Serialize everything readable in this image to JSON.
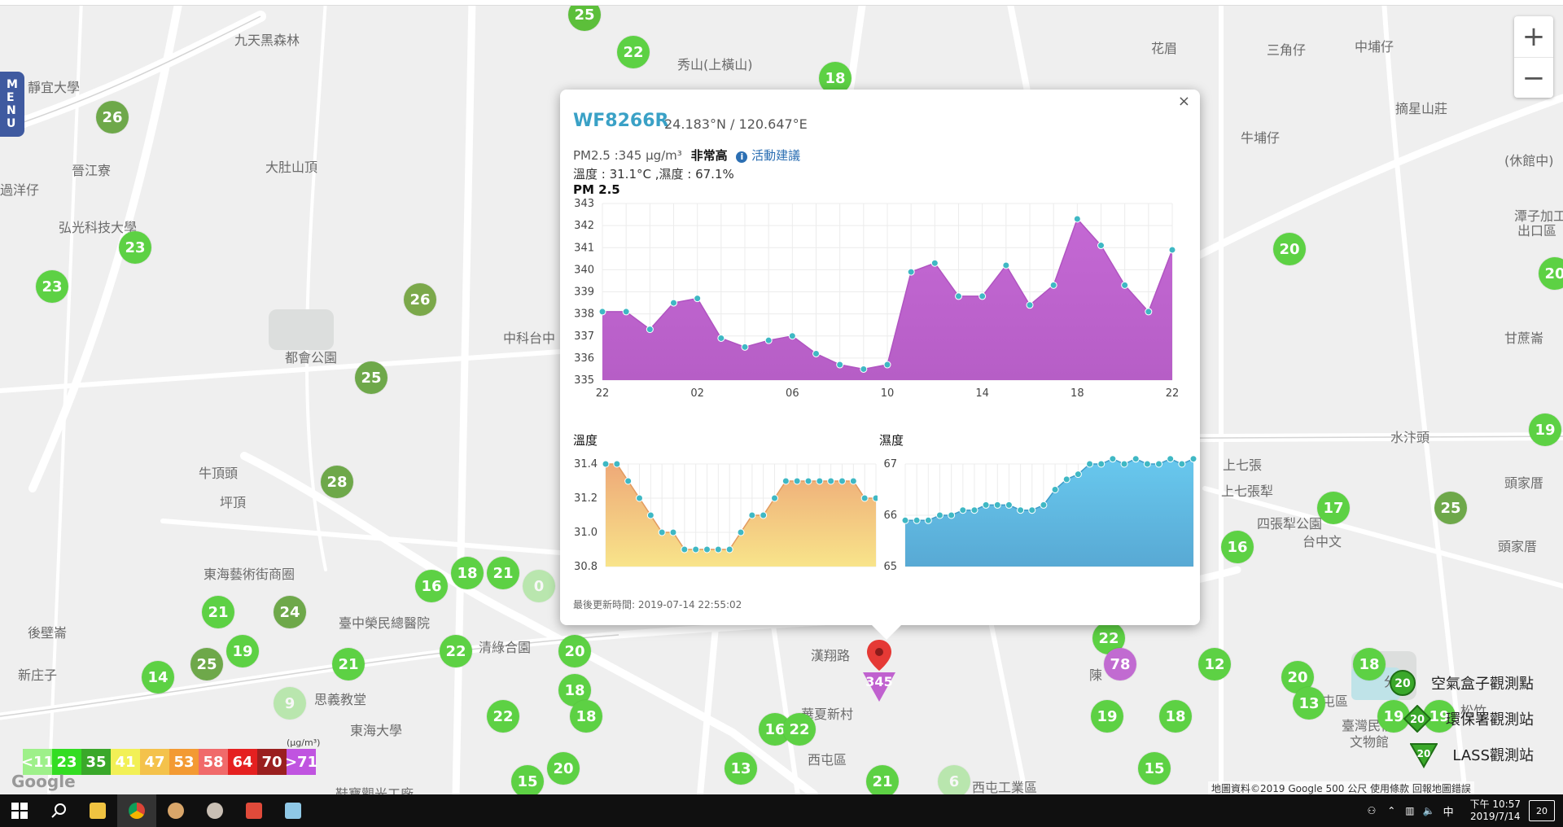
{
  "window": {
    "title": "LASS空氣盒子地圖"
  },
  "menu": {
    "label": "MENU"
  },
  "zoom": {
    "in": "+",
    "out": "−"
  },
  "places": [
    {
      "t": "九天黑森林",
      "x": 288,
      "y": 36
    },
    {
      "t": "秀山(上橫山)",
      "x": 832,
      "y": 66
    },
    {
      "t": "花眉",
      "x": 1414,
      "y": 46
    },
    {
      "t": "三角仔",
      "x": 1556,
      "y": 48
    },
    {
      "t": "中埔仔",
      "x": 1664,
      "y": 44
    },
    {
      "t": "靜宜大學",
      "x": 34,
      "y": 94
    },
    {
      "t": "摘星山莊",
      "x": 1714,
      "y": 120
    },
    {
      "t": "(休館中)",
      "x": 1848,
      "y": 184
    },
    {
      "t": "晉江寮",
      "x": 88,
      "y": 196
    },
    {
      "t": "大肚山頂",
      "x": 326,
      "y": 192
    },
    {
      "t": "牛埔仔",
      "x": 1524,
      "y": 156
    },
    {
      "t": "過洋仔",
      "x": 0,
      "y": 220
    },
    {
      "t": "弘光科技大學",
      "x": 72,
      "y": 266
    },
    {
      "t": "潭子加工",
      "x": 1860,
      "y": 252
    },
    {
      "t": "出口區",
      "x": 1864,
      "y": 270
    },
    {
      "t": "中科台中",
      "x": 618,
      "y": 402
    },
    {
      "t": "都會公園",
      "x": 350,
      "y": 426
    },
    {
      "t": "甘蔗崙",
      "x": 1848,
      "y": 402
    },
    {
      "t": "水汴頭",
      "x": 1708,
      "y": 524
    },
    {
      "t": "上七張",
      "x": 1502,
      "y": 558
    },
    {
      "t": "頭家厝",
      "x": 1848,
      "y": 580
    },
    {
      "t": "牛頂頭",
      "x": 244,
      "y": 568
    },
    {
      "t": "上七張犁",
      "x": 1500,
      "y": 590
    },
    {
      "t": "坪頂",
      "x": 270,
      "y": 604
    },
    {
      "t": "四張犁公園",
      "x": 1544,
      "y": 630
    },
    {
      "t": "台中文",
      "x": 1600,
      "y": 652
    },
    {
      "t": "頭家厝",
      "x": 1840,
      "y": 658
    },
    {
      "t": "東海藝術街商圈",
      "x": 250,
      "y": 692
    },
    {
      "t": "臺中榮民總醫院",
      "x": 416,
      "y": 752
    },
    {
      "t": "清綠合園",
      "x": 588,
      "y": 782
    },
    {
      "t": "後壁崙",
      "x": 34,
      "y": 764
    },
    {
      "t": "新庄子",
      "x": 22,
      "y": 816
    },
    {
      "t": "思義教堂",
      "x": 386,
      "y": 846
    },
    {
      "t": "東海大學",
      "x": 430,
      "y": 884
    },
    {
      "t": "華夏新村",
      "x": 984,
      "y": 864
    },
    {
      "t": "西屯區",
      "x": 992,
      "y": 920
    },
    {
      "t": "北屯區",
      "x": 1608,
      "y": 848
    },
    {
      "t": "臺灣民俗",
      "x": 1648,
      "y": 878
    },
    {
      "t": "文物館",
      "x": 1658,
      "y": 898
    },
    {
      "t": "西屯工業區",
      "x": 1194,
      "y": 954
    },
    {
      "t": "鞋寶觀光工廠",
      "x": 412,
      "y": 962
    },
    {
      "t": "漢翔路",
      "x": 996,
      "y": 792
    },
    {
      "t": "分",
      "x": 1700,
      "y": 824
    },
    {
      "t": "松竹",
      "x": 1794,
      "y": 860
    },
    {
      "t": "陳",
      "x": 1338,
      "y": 816
    }
  ],
  "markers": [
    {
      "v": "25",
      "x": 718,
      "y": 18,
      "c": "#5cbf3a"
    },
    {
      "v": "22",
      "x": 778,
      "y": 64,
      "c": "#5dd144"
    },
    {
      "v": "18",
      "x": 1026,
      "y": 96,
      "c": "#5dd144"
    },
    {
      "v": "26",
      "x": 138,
      "y": 144,
      "c": "#6ea84a"
    },
    {
      "v": "23",
      "x": 166,
      "y": 304,
      "c": "#5dd144"
    },
    {
      "v": "23",
      "x": 64,
      "y": 352,
      "c": "#5dd144"
    },
    {
      "v": "26",
      "x": 516,
      "y": 368,
      "c": "#7ba84a"
    },
    {
      "v": "25",
      "x": 456,
      "y": 464,
      "c": "#6ea84a"
    },
    {
      "v": "20",
      "x": 1584,
      "y": 306,
      "c": "#5dd144"
    },
    {
      "v": "20",
      "x": 1910,
      "y": 336,
      "c": "#5dd144"
    },
    {
      "v": "19",
      "x": 1898,
      "y": 528,
      "c": "#5dd144"
    },
    {
      "v": "28",
      "x": 414,
      "y": 592,
      "c": "#6ea84a"
    },
    {
      "v": "17",
      "x": 1638,
      "y": 624,
      "c": "#5dd144"
    },
    {
      "v": "25",
      "x": 1782,
      "y": 624,
      "c": "#6ea84a"
    },
    {
      "v": "16",
      "x": 1520,
      "y": 672,
      "c": "#5dd144"
    },
    {
      "v": "18",
      "x": 574,
      "y": 704,
      "c": "#5dd144"
    },
    {
      "v": "21",
      "x": 618,
      "y": 704,
      "c": "#5dd144"
    },
    {
      "v": "0",
      "x": 662,
      "y": 720,
      "c": "#8ee07a",
      "light": true
    },
    {
      "v": "16",
      "x": 530,
      "y": 720,
      "c": "#5dd144"
    },
    {
      "v": "21",
      "x": 268,
      "y": 752,
      "c": "#5dd144"
    },
    {
      "v": "24",
      "x": 356,
      "y": 752,
      "c": "#6ea84a"
    },
    {
      "v": "19",
      "x": 298,
      "y": 800,
      "c": "#5dd144"
    },
    {
      "v": "25",
      "x": 254,
      "y": 816,
      "c": "#6ea84a"
    },
    {
      "v": "21",
      "x": 428,
      "y": 816,
      "c": "#5dd144"
    },
    {
      "v": "22",
      "x": 560,
      "y": 800,
      "c": "#5dd144"
    },
    {
      "v": "20",
      "x": 706,
      "y": 800,
      "c": "#5dd144"
    },
    {
      "v": "22",
      "x": 1362,
      "y": 784,
      "c": "#5dd144"
    },
    {
      "v": "78",
      "x": 1376,
      "y": 816,
      "c": "#c16bd1"
    },
    {
      "v": "12",
      "x": 1492,
      "y": 816,
      "c": "#5dd144"
    },
    {
      "v": "20",
      "x": 1594,
      "y": 832,
      "c": "#5dd144"
    },
    {
      "v": "18",
      "x": 1682,
      "y": 816,
      "c": "#5dd144"
    },
    {
      "v": "14",
      "x": 194,
      "y": 832,
      "c": "#5dd144"
    },
    {
      "v": "9",
      "x": 356,
      "y": 864,
      "c": "#8ee07a",
      "light": true
    },
    {
      "v": "18",
      "x": 706,
      "y": 848,
      "c": "#5dd144"
    },
    {
      "v": "22",
      "x": 618,
      "y": 880,
      "c": "#5dd144"
    },
    {
      "v": "18",
      "x": 720,
      "y": 880,
      "c": "#5dd144"
    },
    {
      "v": "13",
      "x": 1608,
      "y": 864,
      "c": "#5dd144"
    },
    {
      "v": "19",
      "x": 1360,
      "y": 880,
      "c": "#5dd144"
    },
    {
      "v": "18",
      "x": 1444,
      "y": 880,
      "c": "#5dd144"
    },
    {
      "v": "19",
      "x": 1712,
      "y": 880,
      "c": "#5dd144"
    },
    {
      "v": "19",
      "x": 1768,
      "y": 880,
      "c": "#5dd144"
    },
    {
      "v": "16",
      "x": 952,
      "y": 896,
      "c": "#5dd144"
    },
    {
      "v": "22",
      "x": 982,
      "y": 896,
      "c": "#5dd144"
    },
    {
      "v": "15",
      "x": 648,
      "y": 960,
      "c": "#5dd144"
    },
    {
      "v": "20",
      "x": 692,
      "y": 944,
      "c": "#5dd144"
    },
    {
      "v": "13",
      "x": 910,
      "y": 944,
      "c": "#5dd144"
    },
    {
      "v": "21",
      "x": 1084,
      "y": 960,
      "c": "#5dd144"
    },
    {
      "v": "6",
      "x": 1172,
      "y": 960,
      "c": "#8ee07a",
      "light": true
    },
    {
      "v": "15",
      "x": 1418,
      "y": 944,
      "c": "#5dd144"
    }
  ],
  "selected_marker": {
    "value": "345"
  },
  "popup": {
    "close": "×",
    "device_id": "WF8266R",
    "coords": "24.183°N / 120.647°E",
    "pm_text": "PM2.5 :345 μg/m³",
    "level": "非常高",
    "advice_link": "活動建議",
    "temp_humidity": "溫度 : 31.1°C ,濕度 : 67.1%",
    "pm_chart_title": "PM 2.5",
    "temp_chart_title": "溫度",
    "hum_chart_title": "濕度",
    "updated": "最後更新時間: 2019-07-14 22:55:02"
  },
  "chart_data": [
    {
      "type": "area",
      "title": "PM 2.5",
      "x_ticks": [
        "22",
        "02",
        "06",
        "10",
        "14",
        "18",
        "22"
      ],
      "ylim": [
        335,
        343
      ],
      "y_ticks": [
        "343",
        "342",
        "341",
        "340",
        "339",
        "338",
        "337",
        "336",
        "335"
      ],
      "values": [
        338.1,
        338.1,
        337.3,
        338.5,
        338.7,
        336.9,
        336.5,
        336.8,
        337.0,
        336.2,
        335.7,
        335.5,
        335.7,
        339.9,
        340.3,
        338.8,
        338.8,
        340.2,
        338.4,
        339.3,
        342.3,
        341.1,
        339.3,
        338.1,
        340.9
      ],
      "color": "#c061cf"
    },
    {
      "type": "area",
      "title": "溫度",
      "ylim": [
        30.8,
        31.4
      ],
      "y_ticks": [
        "31.4",
        "31.2",
        "31.0",
        "30.8"
      ],
      "values": [
        31.4,
        31.4,
        31.3,
        31.2,
        31.1,
        31.0,
        31.0,
        30.9,
        30.9,
        30.9,
        30.9,
        30.9,
        31.0,
        31.1,
        31.1,
        31.2,
        31.3,
        31.3,
        31.3,
        31.3,
        31.3,
        31.3,
        31.3,
        31.2,
        31.2
      ],
      "color": "#f0b77c"
    },
    {
      "type": "area",
      "title": "濕度",
      "ylim": [
        65,
        67
      ],
      "y_ticks": [
        "67",
        "66",
        "65"
      ],
      "values": [
        65.9,
        65.9,
        65.9,
        66.0,
        66.0,
        66.1,
        66.1,
        66.2,
        66.2,
        66.2,
        66.1,
        66.1,
        66.2,
        66.5,
        66.7,
        66.8,
        67.0,
        67.0,
        67.1,
        67.0,
        67.1,
        67.0,
        67.0,
        67.1,
        67.0,
        67.1
      ],
      "color": "#5ab6e0"
    }
  ],
  "legend": {
    "unit": "(μg/m³)",
    "items": [
      {
        "label": "<11",
        "c": "#9ef08a"
      },
      {
        "label": "23",
        "c": "#33dd22"
      },
      {
        "label": "35",
        "c": "#3aa82a"
      },
      {
        "label": "41",
        "c": "#f2f056"
      },
      {
        "label": "47",
        "c": "#f4c24b"
      },
      {
        "label": "53",
        "c": "#f39a33"
      },
      {
        "label": "58",
        "c": "#f06a6a"
      },
      {
        "label": "64",
        "c": "#e52020"
      },
      {
        "label": "70",
        "c": "#9a1f1f"
      },
      {
        "label": ">71",
        "c": "#c054e0"
      }
    ]
  },
  "station_key": [
    {
      "label": "空氣盒子觀測點",
      "value": "20",
      "shape": "circle"
    },
    {
      "label": "環保署觀測站",
      "value": "20",
      "shape": "diamond"
    },
    {
      "label": "LASS觀測站",
      "value": "20",
      "shape": "triangle"
    }
  ],
  "attribution": "地圖資料©2019 Google   500 公尺       使用條款   回報地圖錯誤",
  "google_logo": "Google",
  "taskbar": {
    "time": "下午 10:57",
    "date": "2019/7/14",
    "ime": "中",
    "notifications": "20"
  }
}
